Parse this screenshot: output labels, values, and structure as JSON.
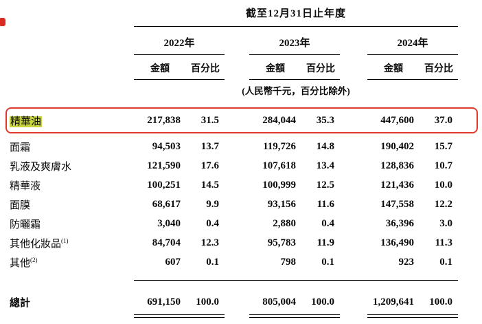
{
  "annotation": {
    "box_color": "#e03a2c",
    "highlight_color": "#c9d53f"
  },
  "header": {
    "period_title": "截至12月31日止年度",
    "note": "(人民幣千元，百分比除外)",
    "years": [
      {
        "label": "2022年",
        "amount_label": "金額",
        "pct_label": "百分比"
      },
      {
        "label": "2023年",
        "amount_label": "金額",
        "pct_label": "百分比"
      },
      {
        "label": "2024年",
        "amount_label": "金額",
        "pct_label": "百分比"
      }
    ]
  },
  "rows": [
    {
      "label": "精華油",
      "values": [
        "217,838",
        "31.5",
        "284,044",
        "35.3",
        "447,600",
        "37.0"
      ]
    },
    {
      "label": "面霜",
      "values": [
        "94,503",
        "13.7",
        "119,726",
        "14.8",
        "190,402",
        "15.7"
      ]
    },
    {
      "label": "乳液及爽膚水",
      "values": [
        "121,590",
        "17.6",
        "107,618",
        "13.4",
        "128,836",
        "10.7"
      ]
    },
    {
      "label": "精華液",
      "values": [
        "100,251",
        "14.5",
        "100,999",
        "12.5",
        "121,436",
        "10.0"
      ]
    },
    {
      "label": "面膜",
      "values": [
        "68,617",
        "9.9",
        "93,156",
        "11.6",
        "147,558",
        "12.2"
      ]
    },
    {
      "label": "防曬霜",
      "values": [
        "3,040",
        "0.4",
        "2,880",
        "0.4",
        "36,396",
        "3.0"
      ]
    },
    {
      "label": "其他化妝品",
      "sup": "(1)",
      "values": [
        "84,704",
        "12.3",
        "95,783",
        "11.9",
        "136,490",
        "11.3"
      ]
    },
    {
      "label": "其他",
      "sup": "(2)",
      "values": [
        "607",
        "0.1",
        "798",
        "0.1",
        "923",
        "0.1"
      ]
    }
  ],
  "total": {
    "label": "總計",
    "values": [
      "691,150",
      "100.0",
      "805,004",
      "100.0",
      "1,209,641",
      "100.0"
    ]
  }
}
